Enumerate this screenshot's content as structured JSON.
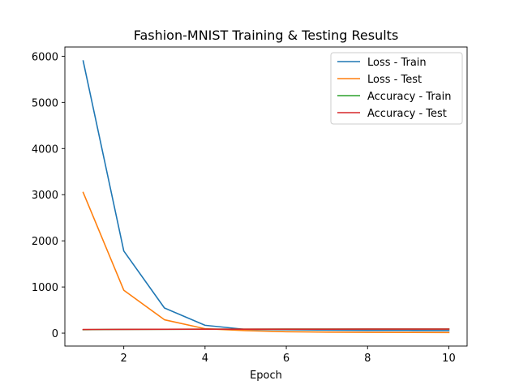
{
  "chart_data": {
    "type": "line",
    "title": "Fashion-MNIST Training & Testing Results",
    "xlabel": "Epoch",
    "ylabel": "",
    "x": [
      1,
      2,
      3,
      4,
      5,
      6,
      7,
      8,
      9,
      10
    ],
    "xlim": [
      0.55,
      10.45
    ],
    "ylim": [
      -280,
      6200
    ],
    "xticks": [
      2,
      4,
      6,
      8,
      10
    ],
    "yticks": [
      0,
      1000,
      2000,
      3000,
      4000,
      5000,
      6000
    ],
    "grid": false,
    "legend_position": "top-right",
    "series": [
      {
        "name": "Loss - Train",
        "color": "#1f77b4",
        "values": [
          5900,
          1780,
          545,
          170,
          80,
          75,
          65,
          60,
          58,
          55
        ]
      },
      {
        "name": "Loss - Test",
        "color": "#ff7f0e",
        "values": [
          3050,
          930,
          290,
          95,
          55,
          30,
          22,
          18,
          15,
          13
        ]
      },
      {
        "name": "Accuracy - Train",
        "color": "#2ca02c",
        "values": [
          75,
          82,
          84,
          85,
          86,
          87,
          87,
          88,
          88,
          88
        ]
      },
      {
        "name": "Accuracy - Test",
        "color": "#d62728",
        "values": [
          78,
          82,
          84,
          85,
          85,
          86,
          86,
          87,
          87,
          87
        ]
      }
    ]
  }
}
